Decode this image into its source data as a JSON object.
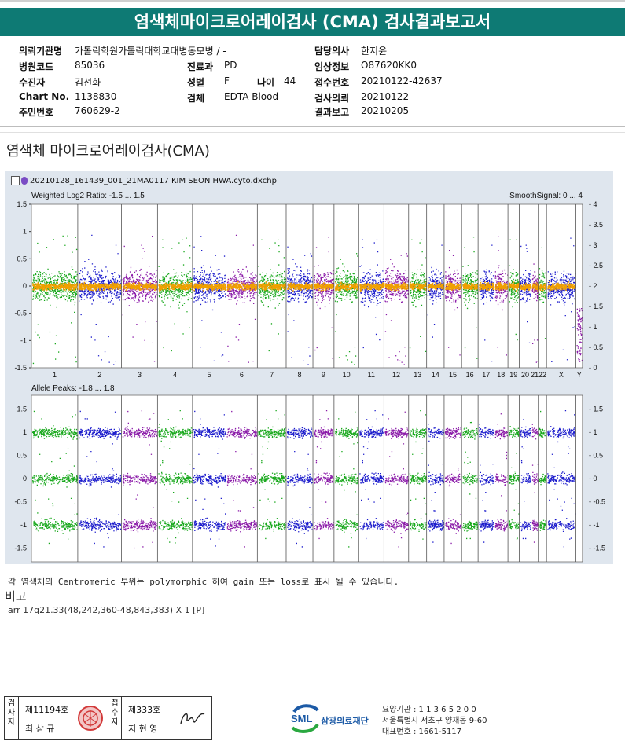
{
  "title": "염색체마이크로어레이검사 (CMA) 검사결과보고서",
  "info": {
    "institution_label": "의뢰기관명",
    "institution": "가톨릭학원가톨릭대학교대병동모병 / -",
    "hospital_code_label": "병원코드",
    "hospital_code": "85036",
    "patient_label": "수진자",
    "patient": "김선화",
    "chart_label": "Chart No.",
    "chart_no": "1138830",
    "id_label": "주민번호",
    "id_no": "760629-2",
    "dept_label": "진료과",
    "dept": "PD",
    "sex_label": "성별",
    "sex": "F",
    "age_label": "나이",
    "age": "44",
    "specimen_label": "검체",
    "specimen": "EDTA Blood",
    "doctor_label": "담당의사",
    "doctor": "한지윤",
    "clinical_label": "임상정보",
    "clinical": "O87620KK0",
    "receipt_label": "접수번호",
    "receipt": "20210122-42637",
    "request_label": "검사의뢰",
    "request_date": "20210122",
    "report_label": "결과보고",
    "report_date": "20210205"
  },
  "section_heading": "염색체 마이크로어레이검사(CMA)",
  "chart_data": {
    "type": "scatter",
    "file": "20210128_161439_001_21MA0117 KIM SEON HWA.cyto.dxchp",
    "top": {
      "title": "Weighted Log2 Ratio: -1.5 ... 1.5",
      "right_title": "SmoothSignal: 0 ... 4",
      "ylim": [
        -1.5,
        1.5
      ],
      "yticks": [
        "1.5",
        "1",
        "0.5",
        "0",
        "-0.5",
        "-1",
        "-1.5"
      ],
      "right_ylim": [
        0,
        4
      ],
      "right_yticks": [
        "4",
        "3.5",
        "3",
        "2.5",
        "2",
        "1.5",
        "1",
        "0.5",
        "0"
      ]
    },
    "bottom": {
      "title": "Allele Peaks: -1.8 ... 1.8",
      "ylim": [
        -1.8,
        1.8
      ],
      "yticks": [
        "1.5",
        "1",
        "0.5",
        "0",
        "-0.5",
        "-1",
        "-1.5"
      ],
      "peaks": [
        1,
        0,
        -1
      ]
    },
    "chromosomes": [
      "1",
      "2",
      "3",
      "4",
      "5",
      "6",
      "7",
      "8",
      "9",
      "10",
      "11",
      "12",
      "13",
      "14",
      "15",
      "16",
      "17",
      "18",
      "19",
      "20",
      "21",
      "22",
      "X",
      "Y"
    ]
  },
  "note": "각 염색체의 Centromeric 부위는 polymorphic 하여 gain 또는 loss로 표시 될 수 있습니다.",
  "remarks_label": "비고",
  "result": "arr 17q21.33(48,242,360-48,843,383) X 1 [P]",
  "footer": {
    "inspector_label": "검사자",
    "inspector_no": "제11194호",
    "inspector_name": "최 삼 규",
    "reviewer_label": "접수자",
    "reviewer_no": "제333호",
    "reviewer_name": "지 현 영",
    "org": "삼광의료재단",
    "sml": "SML",
    "line1": "요양기관 : 1 1 3 6 5 2 0 0",
    "line2": "서울특별시 서초구 양재동 9-60",
    "line3": "대표번호 : 1661-5117"
  },
  "colors": {
    "green": "#18a81c",
    "blue": "#1c1ccc",
    "purple": "#8a1aa8",
    "orange": "#f0a000",
    "teal": "#0e7a74"
  }
}
